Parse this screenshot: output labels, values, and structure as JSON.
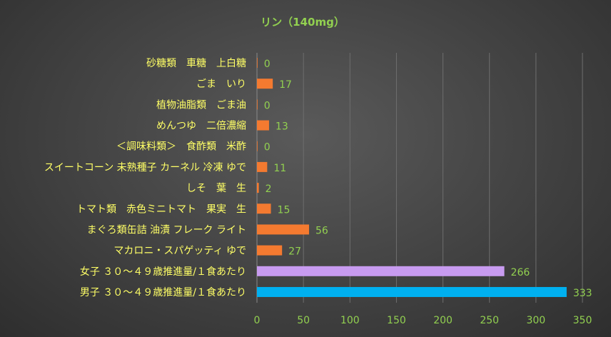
{
  "chart_data": {
    "type": "bar",
    "orientation": "horizontal",
    "title": "リン（140mg）",
    "xlim": [
      0,
      350
    ],
    "xticks": [
      0,
      50,
      100,
      150,
      200,
      250,
      300,
      350
    ],
    "grid": true,
    "categories": [
      "砂糖類　車糖　上白糖",
      "ごま　いり",
      "植物油脂類　ごま油",
      "めんつゆ　二倍濃縮",
      "＜調味料類＞　食酢類　米酢",
      "スイートコーン 未熟種子 カーネル 冷凍 ゆで",
      "しそ　葉　生",
      "トマト類　赤色ミニトマト　果実　生",
      "まぐろ類缶詰 油漬 フレーク ライト",
      "マカロニ・スパゲッティ ゆで",
      "女子 ３０～４９歳推進量/１食あたり",
      "男子 ３０～４９歳推進量/１食あたり"
    ],
    "values": [
      0,
      17,
      0,
      13,
      0,
      11,
      2,
      15,
      56,
      27,
      266,
      333
    ],
    "bar_colors": [
      "#f47a30",
      "#f47a30",
      "#f47a30",
      "#f47a30",
      "#f47a30",
      "#f47a30",
      "#f47a30",
      "#f47a30",
      "#f47a30",
      "#f47a30",
      "#c89bf0",
      "#00b0f0"
    ]
  }
}
